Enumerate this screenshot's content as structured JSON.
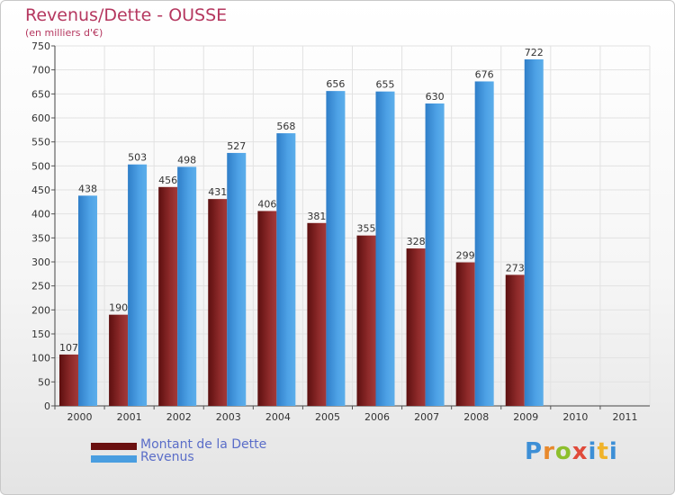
{
  "title": "Revenus/Dette - OUSSE",
  "subtitle": "(en milliers d'€)",
  "colors": {
    "dette": "#7a1a1a",
    "revenus": "#4a9ee0",
    "grid": "#e2e2e2"
  },
  "chart_data": {
    "type": "bar",
    "title": "Revenus/Dette - OUSSE",
    "subtitle": "(en milliers d'€)",
    "categories": [
      "2000",
      "2001",
      "2002",
      "2003",
      "2004",
      "2005",
      "2006",
      "2007",
      "2008",
      "2009",
      "2010",
      "2011"
    ],
    "series": [
      {
        "name": "Montant de la Dette",
        "values": [
          107,
          190,
          456,
          431,
          406,
          381,
          355,
          328,
          299,
          273,
          null,
          null
        ]
      },
      {
        "name": "Revenus",
        "values": [
          438,
          503,
          498,
          527,
          568,
          656,
          655,
          630,
          676,
          722,
          null,
          null
        ]
      }
    ],
    "ylim": [
      0,
      750
    ],
    "yticks": [
      0,
      50,
      100,
      150,
      200,
      250,
      300,
      350,
      400,
      450,
      500,
      550,
      600,
      650,
      700,
      750
    ],
    "grid": true,
    "legend": "bottom-left"
  },
  "legend": {
    "dette_label": "Montant de la Dette",
    "revenus_label": "Revenus"
  },
  "logo": {
    "text": "Proxiti"
  }
}
